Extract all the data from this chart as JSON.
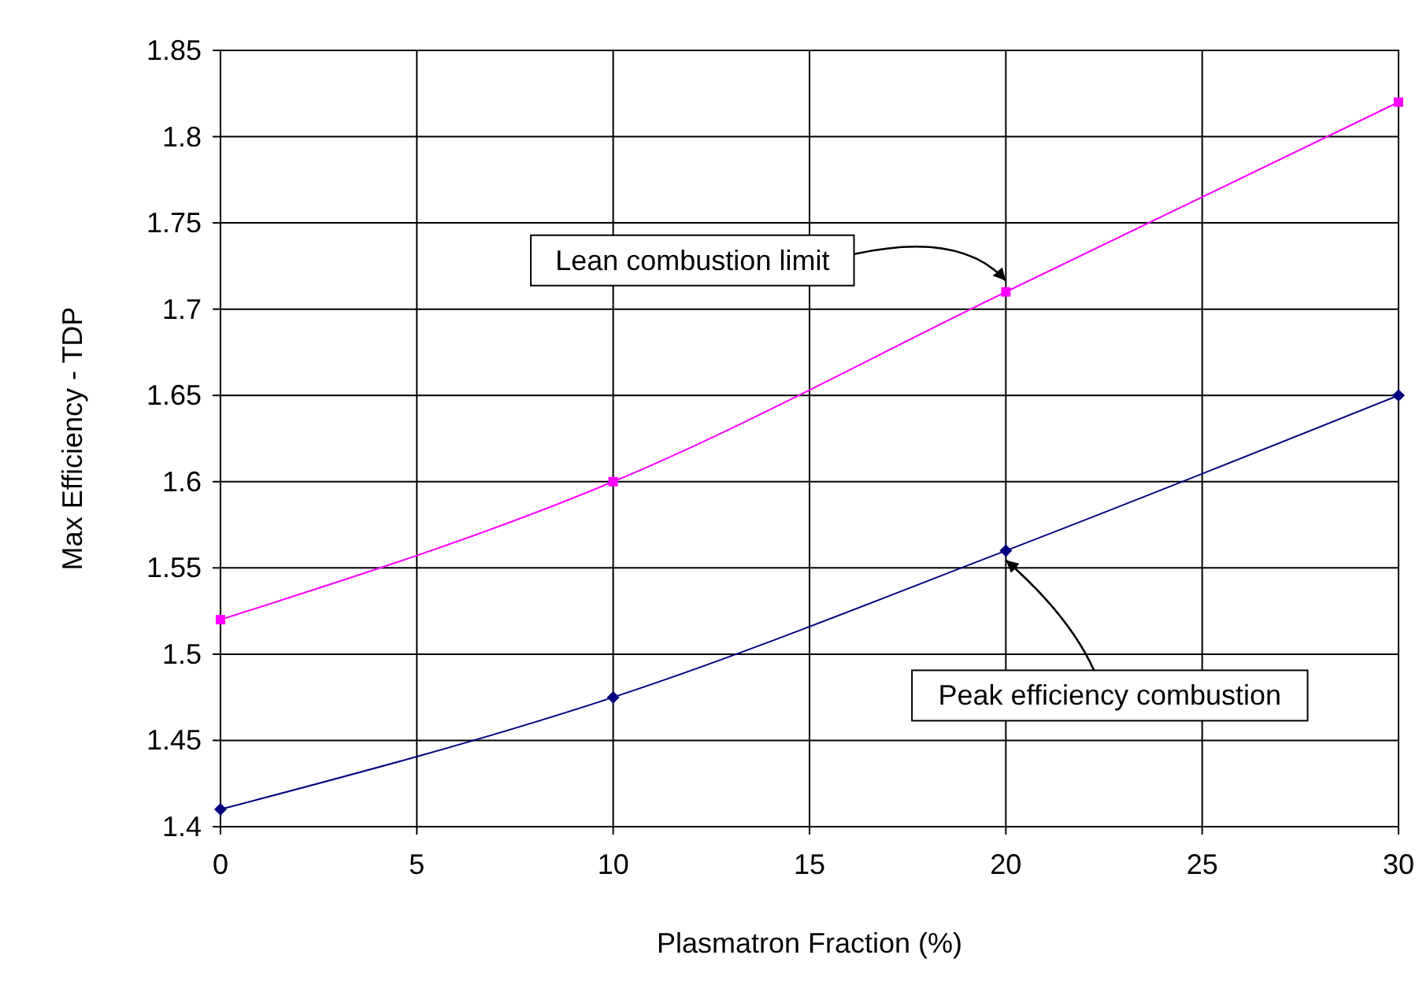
{
  "chart_data": {
    "type": "line",
    "xlabel": "Plasmatron Fraction (%)",
    "ylabel": "Max Efficiency - TDP",
    "x": [
      0,
      10,
      20,
      30
    ],
    "series": [
      {
        "color": "#ff00ff",
        "values": [
          1.52,
          1.6,
          1.71,
          1.82
        ],
        "marker": "square"
      },
      {
        "color": "#000080",
        "values": [
          1.41,
          1.475,
          1.56,
          1.65
        ],
        "marker": "diamond"
      }
    ],
    "xlim": [
      0,
      30
    ],
    "xticks": [
      0,
      5,
      10,
      15,
      20,
      25,
      30
    ],
    "ylim": [
      1.4,
      1.85
    ],
    "yticks": [
      1.4,
      1.45,
      1.5,
      1.55,
      1.6,
      1.65,
      1.7,
      1.75,
      1.8,
      1.85
    ],
    "grid": true,
    "line_style": "solid",
    "annotations": [
      {
        "text": "Lean combustion limit",
        "x": 20,
        "y": 1.71
      },
      {
        "text": "Peak efficiency combustion",
        "x": 20,
        "y": 1.56
      }
    ]
  }
}
